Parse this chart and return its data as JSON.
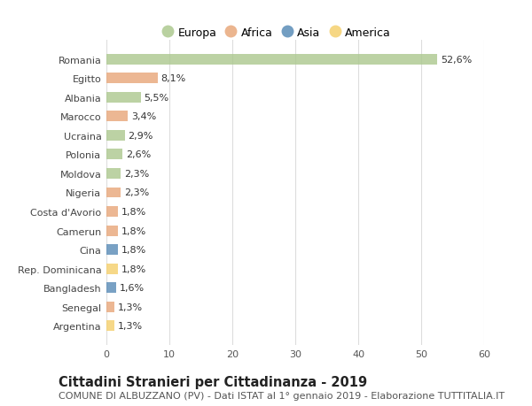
{
  "countries": [
    "Romania",
    "Egitto",
    "Albania",
    "Marocco",
    "Ucraina",
    "Polonia",
    "Moldova",
    "Nigeria",
    "Costa d'Avorio",
    "Camerun",
    "Cina",
    "Rep. Dominicana",
    "Bangladesh",
    "Senegal",
    "Argentina"
  ],
  "values": [
    52.6,
    8.1,
    5.5,
    3.4,
    2.9,
    2.6,
    2.3,
    2.3,
    1.8,
    1.8,
    1.8,
    1.8,
    1.6,
    1.3,
    1.3
  ],
  "labels": [
    "52,6%",
    "8,1%",
    "5,5%",
    "3,4%",
    "2,9%",
    "2,6%",
    "2,3%",
    "2,3%",
    "1,8%",
    "1,8%",
    "1,8%",
    "1,8%",
    "1,6%",
    "1,3%",
    "1,3%"
  ],
  "continents": [
    "Europa",
    "Africa",
    "Europa",
    "Africa",
    "Europa",
    "Europa",
    "Europa",
    "Africa",
    "Africa",
    "Africa",
    "Asia",
    "America",
    "Asia",
    "Africa",
    "America"
  ],
  "continent_colors": {
    "Europa": "#adc990",
    "Africa": "#e8a87c",
    "Asia": "#5b8db8",
    "America": "#f5d06e"
  },
  "legend_order": [
    "Europa",
    "Africa",
    "Asia",
    "America"
  ],
  "title": "Cittadini Stranieri per Cittadinanza - 2019",
  "subtitle": "COMUNE DI ALBUZZANO (PV) - Dati ISTAT al 1° gennaio 2019 - Elaborazione TUTTITALIA.IT",
  "xlim": [
    0,
    60
  ],
  "xticks": [
    0,
    10,
    20,
    30,
    40,
    50,
    60
  ],
  "bg_color": "#ffffff",
  "grid_color": "#dddddd",
  "bar_height": 0.55,
  "title_fontsize": 10.5,
  "subtitle_fontsize": 8.0,
  "label_fontsize": 8.0,
  "tick_fontsize": 8.0,
  "legend_fontsize": 9.0
}
